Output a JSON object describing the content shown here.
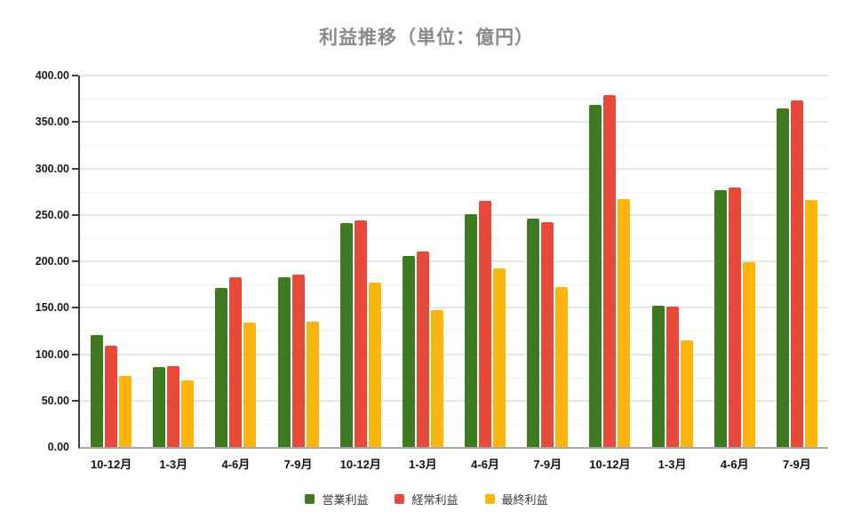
{
  "chart_data": {
    "type": "bar",
    "title": "利益推移（単位：億円）",
    "categories": [
      "10-12月",
      "1-3月",
      "4-6月",
      "7-9月",
      "10-12月",
      "1-3月",
      "4-6月",
      "7-9月",
      "10-12月",
      "1-3月",
      "4-6月",
      "7-9月"
    ],
    "series": [
      {
        "name": "営業利益",
        "color": "#3E7A1F",
        "values": [
          121,
          86,
          171,
          183,
          241,
          206,
          251,
          246,
          368,
          152,
          277,
          365
        ]
      },
      {
        "name": "経常利益",
        "color": "#E7493B",
        "values": [
          109,
          87,
          183,
          186,
          244,
          211,
          265,
          242,
          379,
          151,
          279,
          373
        ]
      },
      {
        "name": "最終利益",
        "color": "#FBB50C",
        "values": [
          77,
          72,
          134,
          135,
          177,
          147,
          192,
          172,
          267,
          115,
          199,
          266
        ]
      }
    ],
    "ylim": [
      0,
      400
    ],
    "y_major_step": 50,
    "y_minor_step": 25,
    "y_ticks": [
      "0.00",
      "50.00",
      "100.00",
      "150.00",
      "200.00",
      "250.00",
      "300.00",
      "350.00",
      "400.00"
    ],
    "xlabel": "",
    "ylabel": "",
    "grid": true,
    "legend_position": "bottom"
  }
}
